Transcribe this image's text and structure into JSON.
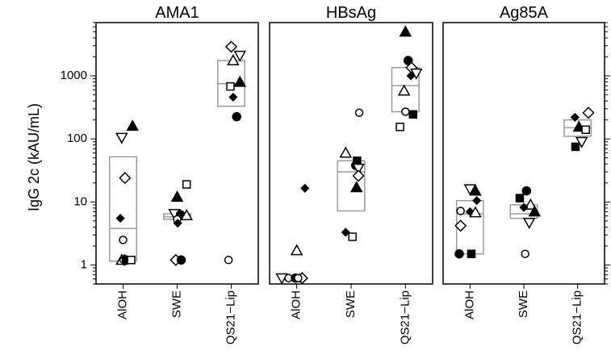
{
  "chart_data": {
    "type": "scatter",
    "ylabel": "IgG 2c (kAU/mL)",
    "yscale": "log",
    "ylim": [
      0.5,
      7000
    ],
    "y_ticks": [
      "1",
      "10",
      "100",
      "1000"
    ],
    "categories": [
      "AlOH",
      "SWE",
      "QS21−Lip"
    ],
    "grid": false,
    "panels": [
      {
        "title": "AMA1",
        "boxes": [
          {
            "category": "AlOH",
            "q1": 1.15,
            "median": 3.8,
            "q3": 52
          },
          {
            "category": "SWE",
            "q1": 5.3,
            "median": 5.8,
            "q3": 6.5
          },
          {
            "category": "QS21−Lip",
            "q1": 330,
            "median": 750,
            "q3": 1750
          }
        ],
        "points": [
          {
            "category": "AlOH",
            "y": 160,
            "shape": "triangle-up",
            "filled": true,
            "offset": 0.35
          },
          {
            "category": "AlOH",
            "y": 105,
            "shape": "triangle-down",
            "filled": false,
            "offset": -0.05
          },
          {
            "category": "AlOH",
            "y": 24,
            "shape": "diamond",
            "filled": false,
            "offset": 0.07
          },
          {
            "category": "AlOH",
            "y": 5.5,
            "shape": "diamond",
            "filled": true,
            "offset": -0.1
          },
          {
            "category": "AlOH",
            "y": 2.5,
            "shape": "circle",
            "filled": false,
            "offset": 0.0
          },
          {
            "category": "AlOH",
            "y": 1.2,
            "shape": "triangle-up",
            "filled": false,
            "offset": -0.05
          },
          {
            "category": "AlOH",
            "y": 1.2,
            "shape": "diamond",
            "filled": false,
            "offset": 0.05
          },
          {
            "category": "AlOH",
            "y": 1.2,
            "shape": "circle",
            "filled": true,
            "offset": 0.12
          },
          {
            "category": "AlOH",
            "y": 1.2,
            "shape": "square",
            "filled": false,
            "offset": 0.3
          },
          {
            "category": "SWE",
            "y": 19,
            "shape": "square",
            "filled": false,
            "offset": 0.35
          },
          {
            "category": "SWE",
            "y": 12,
            "shape": "triangle-up",
            "filled": true,
            "offset": 0.0
          },
          {
            "category": "SWE",
            "y": 6.5,
            "shape": "triangle-down",
            "filled": false,
            "offset": -0.1
          },
          {
            "category": "SWE",
            "y": 6.3,
            "shape": "circle",
            "filled": true,
            "offset": 0.12
          },
          {
            "category": "SWE",
            "y": 6.1,
            "shape": "triangle-up",
            "filled": false,
            "offset": 0.35
          },
          {
            "category": "SWE",
            "y": 5.3,
            "shape": "circle",
            "filled": false,
            "offset": 0.0
          },
          {
            "category": "SWE",
            "y": 4.6,
            "shape": "diamond",
            "filled": true,
            "offset": 0.02
          },
          {
            "category": "SWE",
            "y": 1.2,
            "shape": "diamond",
            "filled": false,
            "offset": -0.05
          },
          {
            "category": "SWE",
            "y": 1.2,
            "shape": "circle",
            "filled": true,
            "offset": 0.15
          },
          {
            "category": "QS21−Lip",
            "y": 2900,
            "shape": "diamond",
            "filled": false,
            "offset": 0.0
          },
          {
            "category": "QS21−Lip",
            "y": 2100,
            "shape": "triangle-down",
            "filled": false,
            "offset": 0.32
          },
          {
            "category": "QS21−Lip",
            "y": 1750,
            "shape": "triangle-up",
            "filled": false,
            "offset": 0.07
          },
          {
            "category": "QS21−Lip",
            "y": 800,
            "shape": "triangle-up",
            "filled": true,
            "offset": 0.32
          },
          {
            "category": "QS21−Lip",
            "y": 680,
            "shape": "square",
            "filled": false,
            "offset": -0.03
          },
          {
            "category": "QS21−Lip",
            "y": 460,
            "shape": "diamond",
            "filled": true,
            "offset": 0.07
          },
          {
            "category": "QS21−Lip",
            "y": 225,
            "shape": "circle",
            "filled": true,
            "offset": 0.2
          },
          {
            "category": "QS21−Lip",
            "y": 1.2,
            "shape": "circle",
            "filled": false,
            "offset": -0.1
          }
        ]
      },
      {
        "title": "HBsAg",
        "boxes": [
          {
            "category": "SWE",
            "q1": 7.2,
            "median": 30,
            "q3": 45
          },
          {
            "category": "QS21−Lip",
            "q1": 270,
            "median": 700,
            "q3": 1350
          }
        ],
        "points": [
          {
            "category": "AlOH",
            "y": 16.5,
            "shape": "diamond",
            "filled": true,
            "offset": 0.3
          },
          {
            "category": "AlOH",
            "y": 1.7,
            "shape": "triangle-up",
            "filled": false,
            "offset": 0.0
          },
          {
            "category": "AlOH",
            "y": 0.62,
            "shape": "triangle-down",
            "filled": false,
            "offset": -0.55
          },
          {
            "category": "AlOH",
            "y": 0.62,
            "shape": "circle",
            "filled": false,
            "offset": -0.3
          },
          {
            "category": "AlOH",
            "y": 0.62,
            "shape": "circle",
            "filled": true,
            "offset": -0.05
          },
          {
            "category": "AlOH",
            "y": 0.62,
            "shape": "square",
            "filled": true,
            "offset": 0.1
          },
          {
            "category": "AlOH",
            "y": 0.62,
            "shape": "diamond",
            "filled": false,
            "offset": 0.2
          },
          {
            "category": "AlOH",
            "y": 0.62,
            "shape": "circle",
            "filled": false,
            "offset": 0.05
          },
          {
            "category": "SWE",
            "y": 260,
            "shape": "circle",
            "filled": false,
            "offset": 0.3
          },
          {
            "category": "SWE",
            "y": 60,
            "shape": "triangle-up",
            "filled": false,
            "offset": -0.2
          },
          {
            "category": "SWE",
            "y": 45,
            "shape": "square",
            "filled": true,
            "offset": 0.22
          },
          {
            "category": "SWE",
            "y": 38,
            "shape": "circle",
            "filled": true,
            "offset": 0.17
          },
          {
            "category": "SWE",
            "y": 34,
            "shape": "triangle-down",
            "filled": false,
            "offset": 0.27
          },
          {
            "category": "SWE",
            "y": 26,
            "shape": "diamond",
            "filled": false,
            "offset": 0.27
          },
          {
            "category": "SWE",
            "y": 17,
            "shape": "triangle-up",
            "filled": true,
            "offset": 0.2
          },
          {
            "category": "SWE",
            "y": 3.3,
            "shape": "diamond",
            "filled": true,
            "offset": -0.2
          },
          {
            "category": "SWE",
            "y": 2.8,
            "shape": "square",
            "filled": false,
            "offset": 0.05
          },
          {
            "category": "QS21−Lip",
            "y": 5000,
            "shape": "triangle-up",
            "filled": true,
            "offset": 0.0
          },
          {
            "category": "QS21−Lip",
            "y": 1750,
            "shape": "circle",
            "filled": true,
            "offset": 0.1
          },
          {
            "category": "QS21−Lip",
            "y": 1350,
            "shape": "diamond",
            "filled": false,
            "offset": 0.22
          },
          {
            "category": "QS21−Lip",
            "y": 1100,
            "shape": "triangle-down",
            "filled": false,
            "offset": 0.4
          },
          {
            "category": "QS21−Lip",
            "y": 1000,
            "shape": "diamond",
            "filled": true,
            "offset": 0.2
          },
          {
            "category": "QS21−Lip",
            "y": 580,
            "shape": "triangle-up",
            "filled": false,
            "offset": -0.05
          },
          {
            "category": "QS21−Lip",
            "y": 270,
            "shape": "circle",
            "filled": false,
            "offset": 0.0
          },
          {
            "category": "QS21−Lip",
            "y": 245,
            "shape": "square",
            "filled": true,
            "offset": 0.28
          },
          {
            "category": "QS21−Lip",
            "y": 155,
            "shape": "square",
            "filled": false,
            "offset": -0.2
          }
        ]
      },
      {
        "title": "Ag85A",
        "boxes": [
          {
            "category": "AlOH",
            "q1": 1.5,
            "median": 6.5,
            "q3": 10.5
          },
          {
            "category": "SWE",
            "q1": 5.5,
            "median": 6.5,
            "q3": 9
          },
          {
            "category": "QS21−Lip",
            "q1": 110,
            "median": 150,
            "q3": 200
          }
        ],
        "points": [
          {
            "category": "AlOH",
            "y": 16,
            "shape": "triangle-down",
            "filled": false,
            "offset": 0.0
          },
          {
            "category": "AlOH",
            "y": 15,
            "shape": "triangle-up",
            "filled": true,
            "offset": 0.2
          },
          {
            "category": "AlOH",
            "y": 10.5,
            "shape": "diamond",
            "filled": true,
            "offset": 0.25
          },
          {
            "category": "AlOH",
            "y": 7.2,
            "shape": "circle",
            "filled": false,
            "offset": -0.35
          },
          {
            "category": "AlOH",
            "y": 7,
            "shape": "diamond",
            "filled": true,
            "offset": 0.0
          },
          {
            "category": "AlOH",
            "y": 6.8,
            "shape": "triangle-up",
            "filled": false,
            "offset": 0.2
          },
          {
            "category": "AlOH",
            "y": 4.2,
            "shape": "diamond",
            "filled": false,
            "offset": -0.35
          },
          {
            "category": "AlOH",
            "y": 1.5,
            "shape": "circle",
            "filled": true,
            "offset": -0.4
          },
          {
            "category": "AlOH",
            "y": 1.5,
            "shape": "square",
            "filled": true,
            "offset": 0.05
          },
          {
            "category": "SWE",
            "y": 15,
            "shape": "circle",
            "filled": true,
            "offset": 0.1
          },
          {
            "category": "SWE",
            "y": 11.5,
            "shape": "square",
            "filled": true,
            "offset": -0.15
          },
          {
            "category": "SWE",
            "y": 9,
            "shape": "triangle-up",
            "filled": false,
            "offset": 0.25
          },
          {
            "category": "SWE",
            "y": 8.2,
            "shape": "diamond",
            "filled": true,
            "offset": 0.0
          },
          {
            "category": "SWE",
            "y": 7,
            "shape": "triangle-up",
            "filled": true,
            "offset": 0.4
          },
          {
            "category": "SWE",
            "y": 4.7,
            "shape": "triangle-down",
            "filled": false,
            "offset": 0.2
          },
          {
            "category": "SWE",
            "y": 1.5,
            "shape": "circle",
            "filled": false,
            "offset": 0.05
          },
          {
            "category": "QS21−Lip",
            "y": 260,
            "shape": "diamond",
            "filled": false,
            "offset": 0.4
          },
          {
            "category": "QS21−Lip",
            "y": 220,
            "shape": "diamond",
            "filled": true,
            "offset": -0.1
          },
          {
            "category": "QS21−Lip",
            "y": 155,
            "shape": "triangle-up",
            "filled": true,
            "offset": 0.05
          },
          {
            "category": "QS21−Lip",
            "y": 140,
            "shape": "square",
            "filled": false,
            "offset": 0.3
          },
          {
            "category": "QS21−Lip",
            "y": 90,
            "shape": "triangle-down",
            "filled": false,
            "offset": 0.15
          },
          {
            "category": "QS21−Lip",
            "y": 75,
            "shape": "square",
            "filled": true,
            "offset": -0.08
          }
        ]
      }
    ]
  },
  "colors": {
    "box": "#9a9a9a",
    "marker": "#000000",
    "frame": "#000000",
    "background": "#ffffff"
  }
}
